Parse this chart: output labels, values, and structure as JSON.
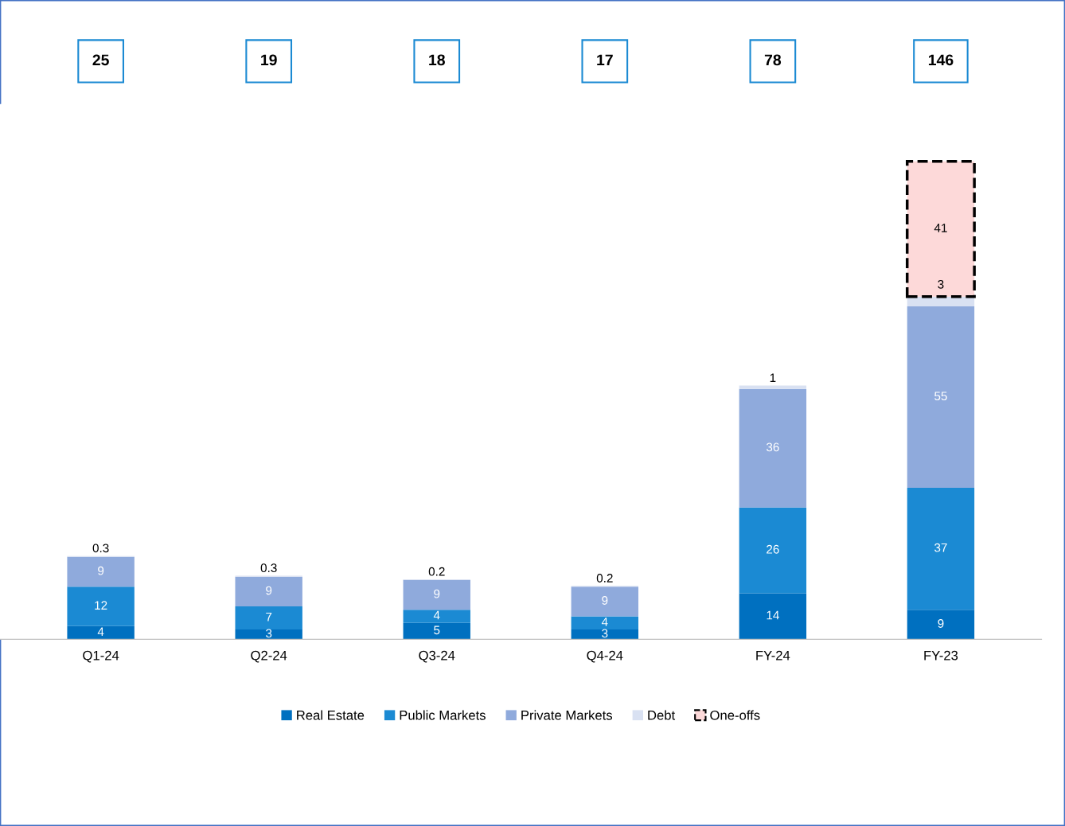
{
  "chart_data": {
    "type": "bar",
    "stacked": true,
    "data_labels": true,
    "legend": "bottom",
    "grid": false,
    "categories": [
      "Q1-24",
      "Q2-24",
      "Q3-24",
      "Q4-24",
      "FY-24",
      "FY-23"
    ],
    "series": [
      {
        "name": "Real Estate",
        "color": "#0070c0",
        "values": [
          4,
          3,
          5,
          3,
          14,
          9
        ]
      },
      {
        "name": "Public Markets",
        "color": "#1b8ad3",
        "values": [
          12,
          7,
          4,
          4,
          26,
          37
        ]
      },
      {
        "name": "Private Markets",
        "color": "#8faadc",
        "values": [
          9,
          9,
          9,
          9,
          36,
          55
        ]
      },
      {
        "name": "Debt",
        "color": "#d9e1f2",
        "values": [
          0.3,
          0.3,
          0.2,
          0.2,
          1,
          3
        ]
      },
      {
        "name": "One-offs",
        "color": "#fdd9d9",
        "line_style": "dashed",
        "values": [
          null,
          null,
          null,
          null,
          null,
          41
        ]
      }
    ],
    "annotations": [
      "25",
      "19",
      "18",
      "17",
      "78",
      "146"
    ]
  }
}
